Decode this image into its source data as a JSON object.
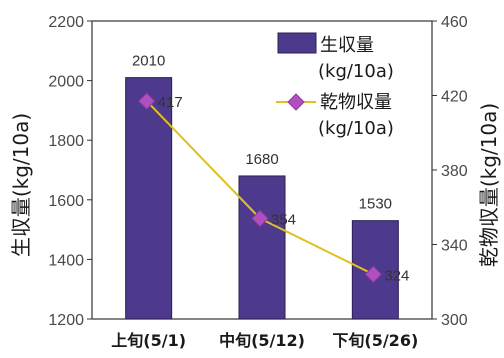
{
  "chart_data": {
    "type": "bar",
    "categories": [
      "上旬(5/1)",
      "中旬(5/12)",
      "下旬(5/26)"
    ],
    "series": [
      {
        "name": "生収量 (kg/10a)",
        "type": "bar",
        "axis": "left",
        "values": [
          2010,
          1680,
          1530
        ],
        "color": "#4e3a8c"
      },
      {
        "name": "乾物収量 (kg/10a)",
        "type": "line",
        "axis": "right",
        "values": [
          417,
          354,
          324
        ],
        "color": "#e0c020",
        "marker_color": "#b04fbf"
      }
    ],
    "value_labels_left": [
      "2010",
      "1680",
      "1530"
    ],
    "value_labels_right": [
      "417",
      "354",
      "324"
    ],
    "ylabel_left": "生収量(kg/10a)",
    "ylabel_right": "乾物収量(kg/10a)",
    "ylim_left": [
      1200,
      2200
    ],
    "yticks_left": [
      1200,
      1400,
      1600,
      1800,
      2000,
      2200
    ],
    "ylim_right": [
      300,
      460
    ],
    "yticks_right": [
      300,
      340,
      380,
      420,
      460
    ],
    "legend": {
      "placement": "top-right",
      "bar_label_line1": "生収量",
      "bar_label_line2": "(kg/10a)",
      "line_label_line1": "乾物収量",
      "line_label_line2": "(kg/10a)"
    },
    "grid": false
  }
}
